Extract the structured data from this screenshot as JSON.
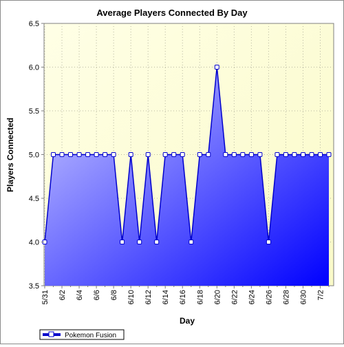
{
  "chart_data": {
    "type": "area",
    "title": "Average Players Connected By Day",
    "xlabel": "Day",
    "ylabel": "Players Connected",
    "ylim": [
      3.5,
      6.5
    ],
    "yticks": [
      "3.5",
      "4.0",
      "4.5",
      "5.0",
      "5.5",
      "6.0",
      "6.5"
    ],
    "x": [
      "5/31",
      "6/1",
      "6/2",
      "6/3",
      "6/4",
      "6/5",
      "6/6",
      "6/7",
      "6/8",
      "6/9",
      "6/10",
      "6/11",
      "6/12",
      "6/13",
      "6/14",
      "6/15",
      "6/16",
      "6/17",
      "6/18",
      "6/19",
      "6/20",
      "6/21",
      "6/22",
      "6/23",
      "6/24",
      "6/25",
      "6/26",
      "6/27",
      "6/28",
      "6/29",
      "6/30",
      "7/1",
      "7/2",
      "7/3"
    ],
    "xtick_labels": [
      "5/31",
      "6/2",
      "6/4",
      "6/6",
      "6/8",
      "6/10",
      "6/12",
      "6/14",
      "6/16",
      "6/18",
      "6/20",
      "6/22",
      "6/24",
      "6/26",
      "6/28",
      "6/30",
      "7/2"
    ],
    "series": [
      {
        "name": "Pokemon Fusion",
        "values": [
          4,
          5,
          5,
          5,
          5,
          5,
          5,
          5,
          5,
          4,
          5,
          4,
          5,
          4,
          5,
          5,
          5,
          4,
          5,
          5,
          6,
          5,
          5,
          5,
          5,
          5,
          4,
          5,
          5,
          5,
          5,
          5,
          5,
          5
        ]
      }
    ],
    "grid": true,
    "legend": "bottom-left",
    "colors": {
      "line": "#0000cc",
      "fill_light": "#c4c4ff",
      "fill_dark": "#0000ff",
      "plot_bg_light": "#ffffe6",
      "plot_bg_dark": "#fafac8"
    }
  }
}
